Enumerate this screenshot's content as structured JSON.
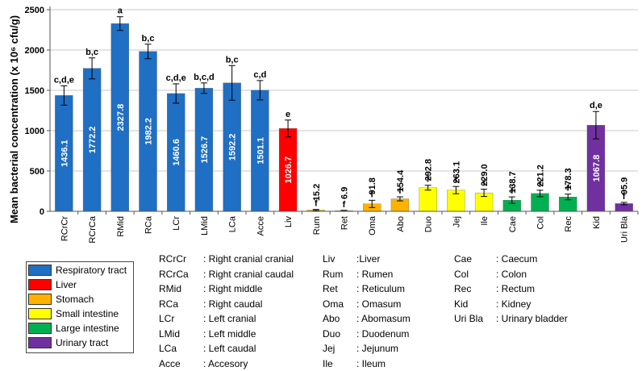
{
  "chart_data": {
    "type": "bar",
    "ylabel": "Mean bacterial concentration (x 10⁶ cfu/g)",
    "ylim": [
      0,
      2500
    ],
    "yticks": [
      0,
      500,
      1000,
      1500,
      2000,
      2500
    ],
    "grid": true,
    "categories": [
      "RCrCr",
      "RCrCa",
      "RMid",
      "RCa",
      "LCr",
      "LMid",
      "LCa",
      "Acce",
      "Liv",
      "Rum",
      "Ret",
      "Oma",
      "Abo",
      "Duo",
      "Jej",
      "Ile",
      "Cae",
      "Col",
      "Rec",
      "Kid",
      "Uri Bla"
    ],
    "values": [
      1436.1,
      1772.2,
      2327.8,
      1982.2,
      1460.6,
      1526.7,
      1592.2,
      1501.1,
      1026.7,
      15.2,
      6.9,
      91.8,
      154.4,
      292.8,
      263.1,
      229.0,
      138.7,
      221.2,
      178.3,
      1067.8,
      95.9
    ],
    "value_labels": [
      "1436.1",
      "1772.2",
      "2327.8",
      "1982.2",
      "1460.6",
      "1526.7",
      "1592.2",
      "1501.1",
      "1026.7",
      "15.2",
      "6.9",
      "91.8",
      "154.4",
      "292.8",
      "263.1",
      "229.0",
      "138.7",
      "221.2",
      "178.3",
      "1067.8",
      "95.9"
    ],
    "errors": [
      120,
      130,
      85,
      90,
      120,
      65,
      215,
      120,
      105,
      8,
      5,
      45,
      25,
      30,
      45,
      45,
      40,
      40,
      35,
      170,
      15
    ],
    "significance": [
      "c,d,e",
      "b,c",
      "a",
      "b,c",
      "c,d,e",
      "b,c,d",
      "b,c",
      "c,d",
      "e",
      "f",
      "f",
      "f",
      "f",
      "f",
      "f",
      "f",
      "f",
      "f",
      "f",
      "d,e",
      "f"
    ],
    "groups": [
      "Respiratory tract",
      "Respiratory tract",
      "Respiratory tract",
      "Respiratory tract",
      "Respiratory tract",
      "Respiratory tract",
      "Respiratory tract",
      "Respiratory tract",
      "Liver",
      "Stomach",
      "Stomach",
      "Stomach",
      "Stomach",
      "Small intestine",
      "Small intestine",
      "Small intestine",
      "Large intestine",
      "Large intestine",
      "Large intestine",
      "Urinary tract",
      "Urinary tract"
    ],
    "legend": [
      {
        "name": "Respiratory tract",
        "color": "#1f6fc4"
      },
      {
        "name": "Liver",
        "color": "#ff0000"
      },
      {
        "name": "Stomach",
        "color": "#ffb300"
      },
      {
        "name": "Small intestine",
        "color": "#ffff00"
      },
      {
        "name": "Large intestine",
        "color": "#00b050"
      },
      {
        "name": "Urinary tract",
        "color": "#7030a0"
      }
    ]
  },
  "abbreviations": [
    [
      {
        "code": "RCrCr",
        "def": ": Right cranial cranial"
      },
      {
        "code": "RCrCa",
        "def": ": Right cranial caudal"
      },
      {
        "code": "RMid",
        "def": ": Right middle"
      },
      {
        "code": "RCa",
        "def": ": Right caudal"
      },
      {
        "code": "LCr",
        "def": ": Left cranial"
      },
      {
        "code": "LMid",
        "def": ": Left middle"
      },
      {
        "code": "LCa",
        "def": ": Left caudal"
      },
      {
        "code": "Acce",
        "def": ": Accesory"
      }
    ],
    [
      {
        "code": "Liv",
        "def": ":Liver"
      },
      {
        "code": "Rum",
        "def": ": Rumen"
      },
      {
        "code": "Ret",
        "def": ": Reticulum"
      },
      {
        "code": "Oma",
        "def": ": Omasum"
      },
      {
        "code": "Abo",
        "def": ": Abomasum"
      },
      {
        "code": "Duo",
        "def": ": Duodenum"
      },
      {
        "code": "Jej",
        "def": ": Jejunum"
      },
      {
        "code": "Ile",
        "def": ": Ileum"
      }
    ],
    [
      {
        "code": "Cae",
        "def": ": Caecum"
      },
      {
        "code": "Col",
        "def": ": Colon"
      },
      {
        "code": "Rec",
        "def": ": Rectum"
      },
      {
        "code": "Kid",
        "def": ": Kidney"
      },
      {
        "code": "Uri Bla",
        "def": ": Urinary bladder"
      }
    ]
  ]
}
